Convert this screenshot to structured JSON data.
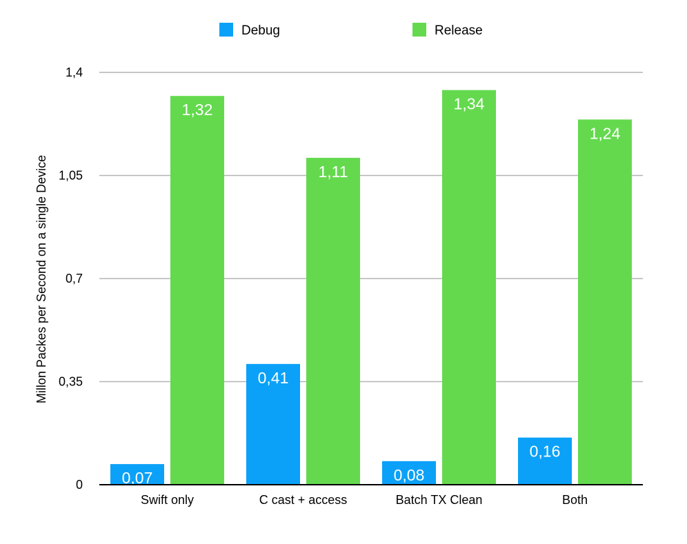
{
  "chart_data": {
    "type": "bar",
    "categories": [
      "Swift only",
      "C cast + access",
      "Batch TX Clean",
      "Both"
    ],
    "series": [
      {
        "name": "Debug",
        "color": "#0ba1f8",
        "values": [
          0.07,
          0.41,
          0.08,
          0.16
        ],
        "labels": [
          "0,07",
          "0,41",
          "0,08",
          "0,16"
        ]
      },
      {
        "name": "Release",
        "color": "#64d94e",
        "values": [
          1.32,
          1.11,
          1.34,
          1.24
        ],
        "labels": [
          "1,32",
          "1,11",
          "1,34",
          "1,24"
        ]
      }
    ],
    "ylabel": "Millon Packes per Second on a single Device",
    "xlabel": "",
    "ylim": [
      0,
      1.4
    ],
    "yticks": [
      0,
      0.35,
      0.7,
      1.05,
      1.4
    ],
    "ytick_labels": [
      "0",
      "0,35",
      "0,7",
      "1,05",
      "1,4"
    ],
    "legend_position": "top",
    "grid": true,
    "grid_color": "#b3b3b3"
  }
}
